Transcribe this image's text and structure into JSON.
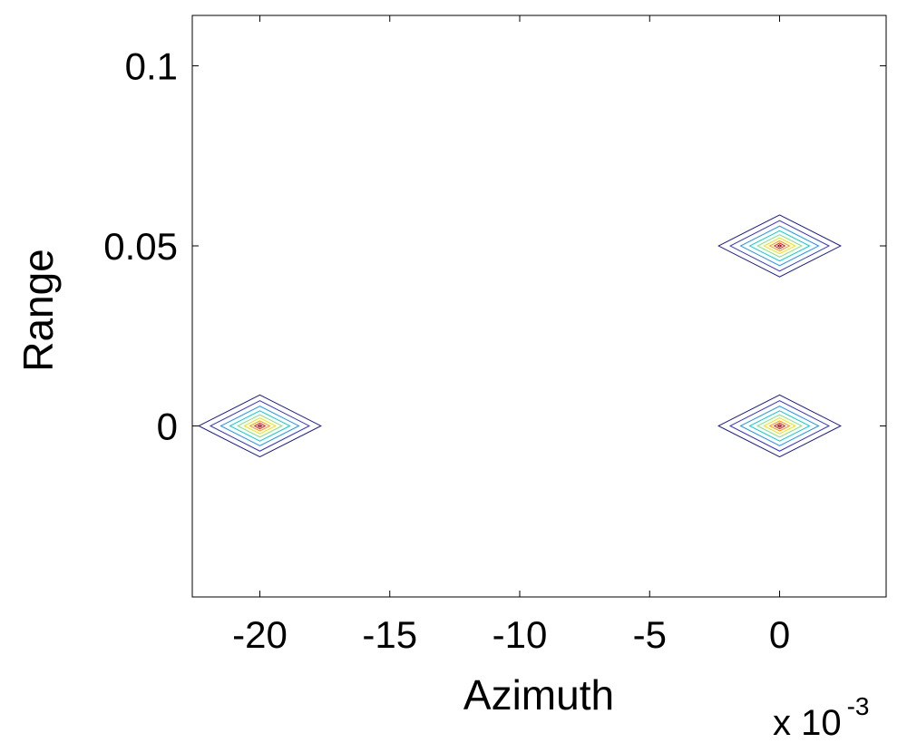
{
  "chart_data": {
    "type": "contour",
    "title": "",
    "xlabel": "Azimuth",
    "ylabel": "Range",
    "x_exponent_label": {
      "prefix": "x 10",
      "exponent": "-3"
    },
    "xlim": [
      -22.6,
      4.1
    ],
    "ylim": [
      -0.0475,
      0.114
    ],
    "x_ticks": [
      -20,
      -15,
      -10,
      -5,
      0
    ],
    "y_ticks": [
      0,
      0.05,
      0.1
    ],
    "x_tick_labels": [
      "-20",
      "-15",
      "-10",
      "-5",
      "0"
    ],
    "y_tick_labels": [
      "0",
      "0.05",
      "0.1"
    ],
    "grid": false,
    "targets": [
      {
        "x": -20,
        "y": 0
      },
      {
        "x": 0,
        "y": 0.05
      },
      {
        "x": 0,
        "y": 0
      }
    ],
    "contour_levels": [
      {
        "half_width_x": 2.35,
        "half_width_y": 0.0086,
        "color": "#1a1a8c"
      },
      {
        "half_width_x": 1.9,
        "half_width_y": 0.007,
        "color": "#3333cc"
      },
      {
        "half_width_x": 1.5,
        "half_width_y": 0.0055,
        "color": "#1e90ff"
      },
      {
        "half_width_x": 1.15,
        "half_width_y": 0.0042,
        "color": "#00d0d0"
      },
      {
        "half_width_x": 0.85,
        "half_width_y": 0.0031,
        "color": "#80e080"
      },
      {
        "half_width_x": 0.6,
        "half_width_y": 0.0022,
        "color": "#f2e200"
      },
      {
        "half_width_x": 0.38,
        "half_width_y": 0.0014,
        "color": "#ff9900"
      },
      {
        "half_width_x": 0.2,
        "half_width_y": 0.0008,
        "color": "#e02020"
      },
      {
        "half_width_x": 0.07,
        "half_width_y": 0.0003,
        "color": "#8b0000"
      }
    ]
  }
}
